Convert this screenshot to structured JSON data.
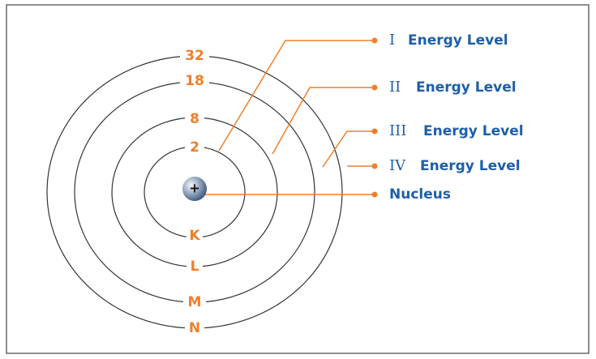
{
  "diagram": {
    "nucleus": {
      "symbol": "+",
      "label": "Nucleus"
    },
    "shells": [
      {
        "capacity": "2",
        "letter": "K",
        "numeral": "I",
        "text": "Energy Level"
      },
      {
        "capacity": "8",
        "letter": "L",
        "numeral": "II",
        "text": "Energy Level"
      },
      {
        "capacity": "18",
        "letter": "M",
        "numeral": "III",
        "text": "Energy Level"
      },
      {
        "capacity": "32",
        "letter": "N",
        "numeral": "IV",
        "text": "Energy Level"
      }
    ]
  }
}
